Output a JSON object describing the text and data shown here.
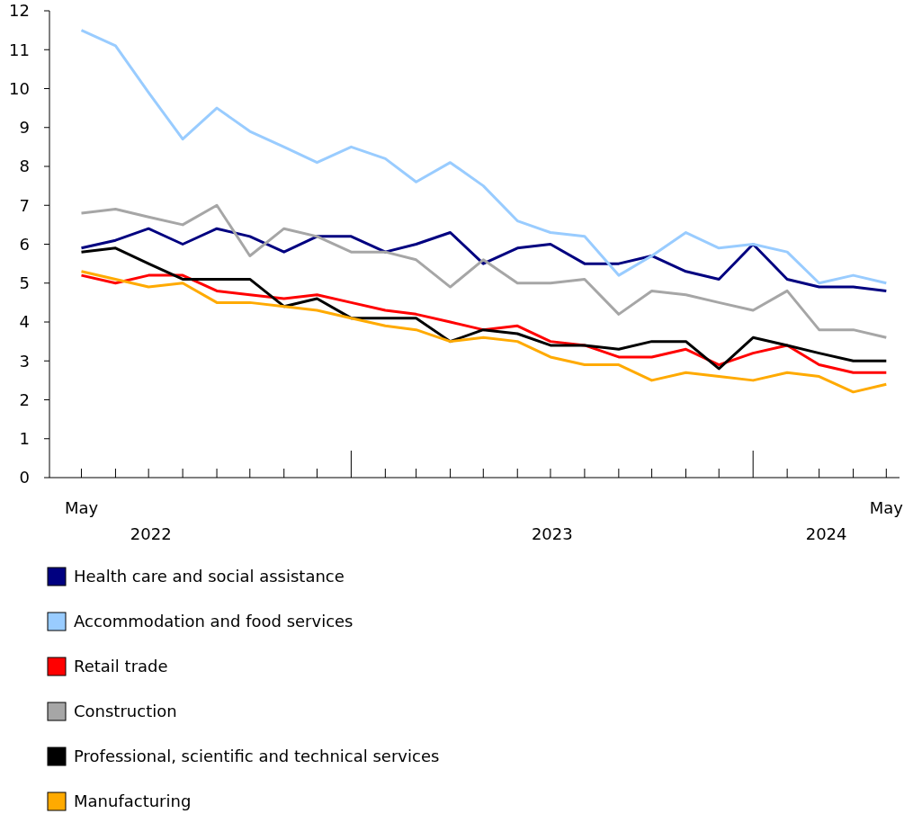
{
  "chart_data": {
    "type": "line",
    "x": [
      "2022-05",
      "2022-06",
      "2022-07",
      "2022-08",
      "2022-09",
      "2022-10",
      "2022-11",
      "2022-12",
      "2023-01",
      "2023-02",
      "2023-03",
      "2023-04",
      "2023-05",
      "2023-06",
      "2023-07",
      "2023-08",
      "2023-09",
      "2023-10",
      "2023-11",
      "2023-12",
      "2024-01",
      "2024-02",
      "2024-03",
      "2024-04",
      "2024-05"
    ],
    "xlim": [
      "2022-04-02",
      "2024-05-13"
    ],
    "xticks": [
      {
        "value": "2022-05",
        "label": "May"
      },
      {
        "value": "2022-06",
        "label": null
      },
      {
        "value": "2022-07",
        "label": null
      },
      {
        "value": "2022-08",
        "label": null
      },
      {
        "value": "2022-09",
        "label": null
      },
      {
        "value": "2022-10",
        "label": null
      },
      {
        "value": "2022-11",
        "label": null
      },
      {
        "value": "2022-12",
        "label": null
      },
      {
        "value": "2023-01",
        "label": null
      },
      {
        "value": "2023-02",
        "label": null
      },
      {
        "value": "2023-03",
        "label": null
      },
      {
        "value": "2023-04",
        "label": null
      },
      {
        "value": "2023-05",
        "label": null
      },
      {
        "value": "2023-06",
        "label": null
      },
      {
        "value": "2023-07",
        "label": null
      },
      {
        "value": "2023-08",
        "label": null
      },
      {
        "value": "2023-09",
        "label": null
      },
      {
        "value": "2023-10",
        "label": null
      },
      {
        "value": "2023-11",
        "label": null
      },
      {
        "value": "2023-12",
        "label": null
      },
      {
        "value": "2024-01",
        "label": null
      },
      {
        "value": "2024-02",
        "label": null
      },
      {
        "value": "2024-03",
        "label": null
      },
      {
        "value": "2024-04",
        "label": null
      },
      {
        "value": "2024-05",
        "label": "May"
      }
    ],
    "ylim": [
      0,
      12
    ],
    "yticks": [
      0,
      1,
      2,
      3,
      4,
      5,
      6,
      7,
      8,
      9,
      10,
      11,
      12
    ],
    "grid": false,
    "legend": "bottom",
    "marker": "none",
    "line_style": "solid",
    "annotations": [
      "2022",
      "2023",
      "2024"
    ],
    "series": [
      {
        "name": "Health care and social assistance",
        "color": "#000080",
        "values": [
          5.9,
          6.1,
          6.4,
          6.0,
          6.4,
          6.2,
          5.8,
          6.2,
          6.2,
          5.8,
          6.0,
          6.3,
          5.5,
          5.9,
          6.0,
          5.5,
          5.5,
          5.7,
          5.3,
          5.1,
          6.0,
          5.1,
          4.9,
          4.9,
          4.8
        ]
      },
      {
        "name": "Accommodation and food services",
        "color": "#99ccff",
        "values": [
          11.5,
          11.1,
          9.9,
          8.7,
          9.5,
          8.9,
          8.5,
          8.1,
          8.5,
          8.2,
          7.6,
          8.1,
          7.5,
          6.6,
          6.3,
          6.2,
          5.2,
          5.7,
          6.3,
          5.9,
          6.0,
          5.8,
          5.0,
          5.2,
          5.0
        ]
      },
      {
        "name": "Retail trade",
        "color": "#ff0000",
        "values": [
          5.2,
          5.0,
          5.2,
          5.2,
          4.8,
          4.7,
          4.6,
          4.7,
          4.5,
          4.3,
          4.2,
          4.0,
          3.8,
          3.9,
          3.5,
          3.4,
          3.1,
          3.1,
          3.3,
          2.9,
          3.2,
          3.4,
          2.9,
          2.7,
          2.7
        ]
      },
      {
        "name": "Construction",
        "color": "#a6a6a6",
        "values": [
          6.8,
          6.9,
          6.7,
          6.5,
          7.0,
          5.7,
          6.4,
          6.2,
          5.8,
          5.8,
          5.6,
          4.9,
          5.6,
          5.0,
          5.0,
          5.1,
          4.2,
          4.8,
          4.7,
          4.5,
          4.3,
          4.8,
          3.8,
          3.8,
          3.6
        ]
      },
      {
        "name": "Professional, scientific and technical services",
        "color": "#000000",
        "values": [
          5.8,
          5.9,
          5.5,
          5.1,
          5.1,
          5.1,
          4.4,
          4.6,
          4.1,
          4.1,
          4.1,
          3.5,
          3.8,
          3.7,
          3.4,
          3.4,
          3.3,
          3.5,
          3.5,
          2.8,
          3.6,
          3.4,
          3.2,
          3.0,
          3.0
        ]
      },
      {
        "name": "Manufacturing",
        "color": "#ffaa00",
        "values": [
          5.3,
          5.1,
          4.9,
          5.0,
          4.5,
          4.5,
          4.4,
          4.3,
          4.1,
          3.9,
          3.8,
          3.5,
          3.6,
          3.5,
          3.1,
          2.9,
          2.9,
          2.5,
          2.7,
          2.6,
          2.5,
          2.7,
          2.6,
          2.2,
          2.4
        ]
      }
    ]
  }
}
